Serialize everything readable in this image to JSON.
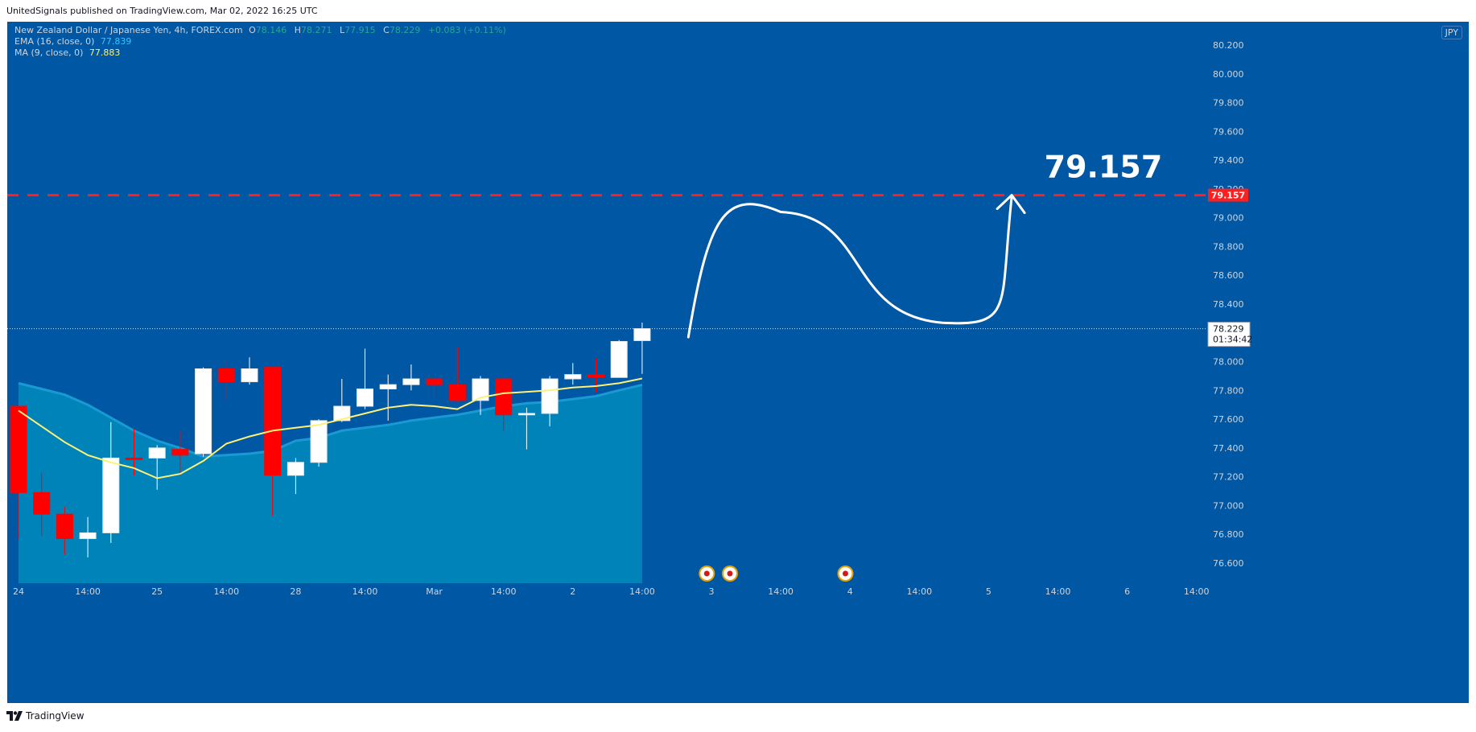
{
  "publisher_line": "UnitedSignals published on TradingView.com, Mar 02, 2022 16:25 UTC",
  "legend": {
    "symbol": "New Zealand Dollar / Japanese Yen, 4h, FOREX.com",
    "o_label": "O",
    "o_value": "78.146",
    "h_label": "H",
    "h_value": "78.271",
    "l_label": "L",
    "l_value": "77.915",
    "c_label": "C",
    "c_value": "78.229",
    "change": "+0.083 (+0.11%)",
    "ema_label": "EMA (16, close, 0)",
    "ema_value": "77.839",
    "ma_label": "MA (9, close, 0)",
    "ma_value": "77.883"
  },
  "currency_badge": "JPY",
  "footer_brand": "TradingView",
  "colors": {
    "background": "#0057a3",
    "up_candle": "#ffffff",
    "down_candle": "#ff0000",
    "ma_line": "#fff176",
    "ema_fill": "#0083b8",
    "target_line": "#ff1f1f",
    "arrow": "#ffffff"
  },
  "chart_data": {
    "type": "candlestick",
    "symbol": "NZDJPY",
    "interval": "4h",
    "ylim": [
      76.5,
      80.3
    ],
    "y_ticks": [
      76.6,
      76.8,
      77.0,
      77.2,
      77.4,
      77.6,
      77.8,
      78.0,
      78.2,
      78.4,
      78.6,
      78.8,
      79.0,
      79.2,
      79.4,
      79.6,
      79.8,
      80.0,
      80.2
    ],
    "y_tick_labels": [
      "76.600",
      "76.800",
      "77.000",
      "77.200",
      "77.400",
      "77.600",
      "77.800",
      "78.000",
      "78.200",
      "78.400",
      "78.600",
      "78.800",
      "79.000",
      "79.200",
      "79.400",
      "79.600",
      "79.800",
      "80.000",
      "80.200"
    ],
    "x_tick_labels": [
      "24",
      "14:00",
      "25",
      "14:00",
      "28",
      "14:00",
      "Mar",
      "14:00",
      "2",
      "14:00",
      "3",
      "14:00",
      "4",
      "14:00",
      "5",
      "14:00",
      "6",
      "14:00"
    ],
    "x_tick_slots": [
      0,
      3,
      6,
      9,
      12,
      15,
      18,
      21,
      24,
      27,
      30,
      33,
      36,
      39,
      42,
      45,
      48,
      51
    ],
    "candles": [
      {
        "o": 77.69,
        "h": 77.69,
        "l": 76.77,
        "c": 77.09
      },
      {
        "o": 77.09,
        "h": 77.23,
        "l": 76.79,
        "c": 76.94
      },
      {
        "o": 76.94,
        "h": 76.99,
        "l": 76.66,
        "c": 76.77
      },
      {
        "o": 76.77,
        "h": 76.92,
        "l": 76.64,
        "c": 76.81
      },
      {
        "o": 76.81,
        "h": 77.58,
        "l": 76.74,
        "c": 77.33
      },
      {
        "o": 77.33,
        "h": 77.53,
        "l": 77.21,
        "c": 77.32
      },
      {
        "o": 77.33,
        "h": 77.42,
        "l": 77.11,
        "c": 77.4
      },
      {
        "o": 77.39,
        "h": 77.52,
        "l": 77.21,
        "c": 77.35
      },
      {
        "o": 77.36,
        "h": 77.96,
        "l": 77.34,
        "c": 77.95
      },
      {
        "o": 77.95,
        "h": 78.0,
        "l": 77.73,
        "c": 77.86
      },
      {
        "o": 77.86,
        "h": 78.03,
        "l": 77.84,
        "c": 77.95
      },
      {
        "o": 77.96,
        "h": 77.96,
        "l": 76.93,
        "c": 77.21
      },
      {
        "o": 77.21,
        "h": 77.33,
        "l": 77.08,
        "c": 77.3
      },
      {
        "o": 77.3,
        "h": 77.6,
        "l": 77.27,
        "c": 77.59
      },
      {
        "o": 77.59,
        "h": 77.88,
        "l": 77.58,
        "c": 77.69
      },
      {
        "o": 77.69,
        "h": 78.09,
        "l": 77.67,
        "c": 77.81
      },
      {
        "o": 77.81,
        "h": 77.91,
        "l": 77.59,
        "c": 77.84
      },
      {
        "o": 77.84,
        "h": 77.98,
        "l": 77.8,
        "c": 77.88
      },
      {
        "o": 77.88,
        "h": 77.88,
        "l": 77.74,
        "c": 77.84
      },
      {
        "o": 77.84,
        "h": 78.1,
        "l": 77.72,
        "c": 77.73
      },
      {
        "o": 77.73,
        "h": 77.9,
        "l": 77.63,
        "c": 77.88
      },
      {
        "o": 77.88,
        "h": 77.88,
        "l": 77.52,
        "c": 77.63
      },
      {
        "o": 77.63,
        "h": 77.68,
        "l": 77.39,
        "c": 77.64
      },
      {
        "o": 77.64,
        "h": 77.9,
        "l": 77.55,
        "c": 77.88
      },
      {
        "o": 77.88,
        "h": 77.99,
        "l": 77.84,
        "c": 77.91
      },
      {
        "o": 77.91,
        "h": 78.02,
        "l": 77.79,
        "c": 77.89
      },
      {
        "o": 77.89,
        "h": 78.15,
        "l": 77.89,
        "c": 78.14
      },
      {
        "o": 78.146,
        "h": 78.271,
        "l": 77.915,
        "c": 78.229
      }
    ],
    "ma_line": [
      77.66,
      77.55,
      77.44,
      77.35,
      77.3,
      77.26,
      77.19,
      77.22,
      77.31,
      77.43,
      77.48,
      77.52,
      77.54,
      77.56,
      77.6,
      77.64,
      77.68,
      77.7,
      77.69,
      77.67,
      77.75,
      77.78,
      77.79,
      77.8,
      77.82,
      77.83,
      77.85,
      77.883
    ],
    "ema_area": [
      77.85,
      77.81,
      77.77,
      77.7,
      77.61,
      77.52,
      77.45,
      77.4,
      77.34,
      77.35,
      77.36,
      77.38,
      77.45,
      77.47,
      77.52,
      77.54,
      77.56,
      77.59,
      77.61,
      77.63,
      77.66,
      77.69,
      77.71,
      77.72,
      77.74,
      77.76,
      77.8,
      77.839
    ],
    "last_price_label": "78.229",
    "countdown_label": "01:34:42",
    "target_level": 79.157,
    "target_label": "79.157",
    "target_annotation": "79.157",
    "projection_path": [
      {
        "slot": 29.0,
        "y": 78.17
      },
      {
        "slot": 33.0,
        "y": 79.04
      },
      {
        "slot": 40.0,
        "y": 78.27
      },
      {
        "slot": 43.0,
        "y": 79.157
      }
    ],
    "event_markers": [
      {
        "slot": 29.8
      },
      {
        "slot": 30.8
      },
      {
        "slot": 35.8
      }
    ]
  }
}
